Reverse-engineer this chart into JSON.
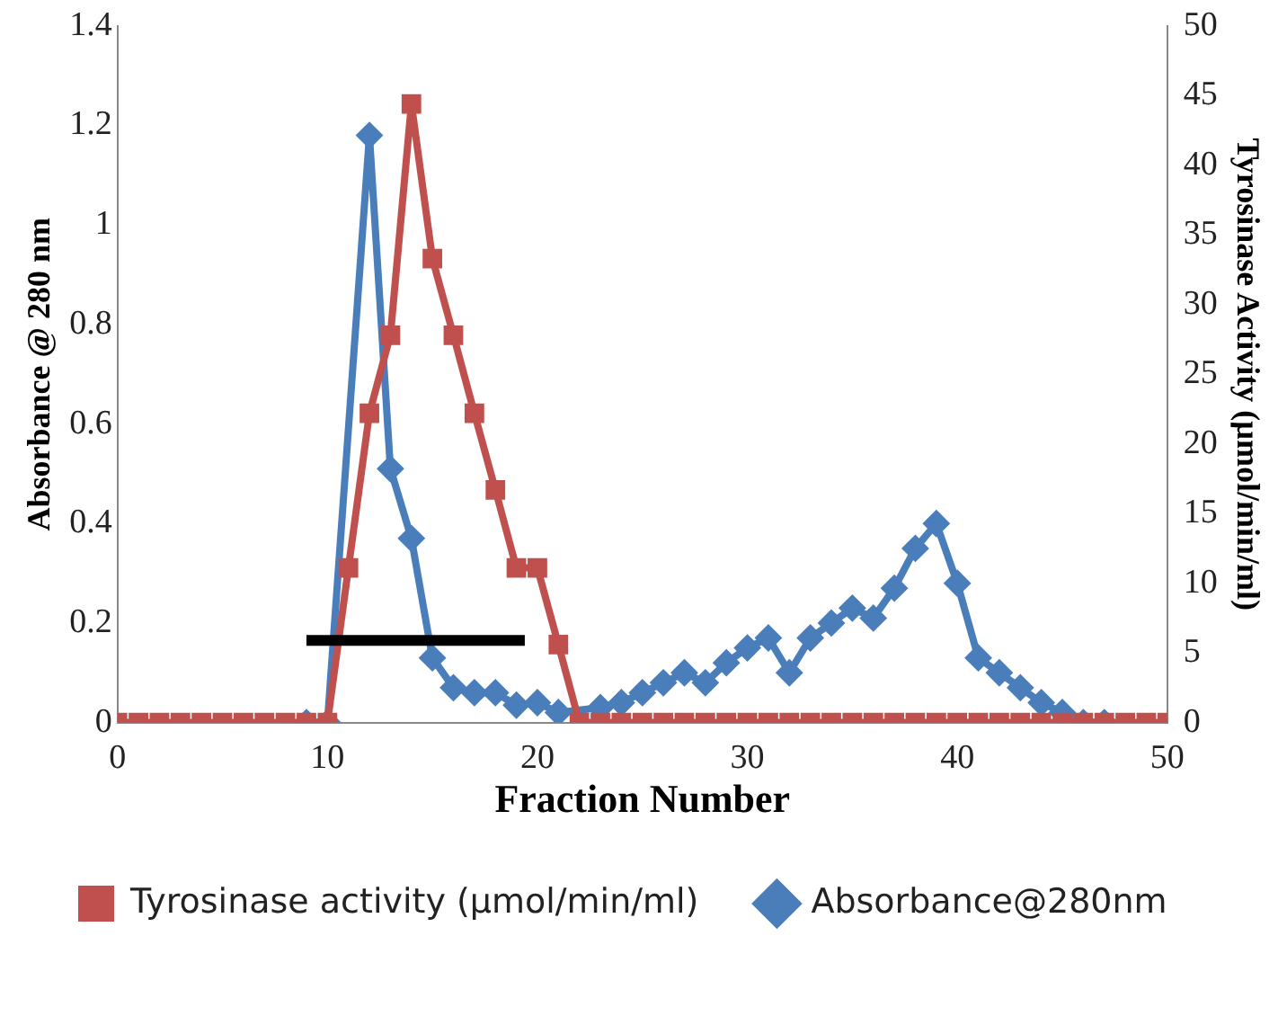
{
  "chart_data": {
    "type": "line",
    "xlabel": "Fraction Number",
    "ylabel": "Absorbance @ 280 nm",
    "y2label": "Tyrosinase Activity (µmol/min/ml)",
    "xlim": [
      0,
      50
    ],
    "xticks": [
      0,
      10,
      20,
      30,
      40,
      50
    ],
    "ylim": [
      0,
      1.4
    ],
    "yticks": [
      0,
      0.2,
      0.4,
      0.6,
      0.8,
      1,
      1.2,
      1.4
    ],
    "y2lim": [
      0,
      50
    ],
    "y2ticks": [
      0,
      5,
      10,
      15,
      20,
      25,
      30,
      35,
      40,
      45,
      50
    ],
    "x": [
      0,
      1,
      2,
      3,
      4,
      5,
      6,
      7,
      8,
      9,
      10,
      11,
      12,
      13,
      14,
      15,
      16,
      17,
      18,
      19,
      20,
      21,
      22,
      23,
      24,
      25,
      26,
      27,
      28,
      29,
      30,
      31,
      32,
      33,
      34,
      35,
      36,
      37,
      38,
      39,
      40,
      41,
      42,
      43,
      44,
      45,
      46,
      47,
      48,
      49,
      50
    ],
    "grid": false,
    "legend": "bottom",
    "series": [
      {
        "name": "Absorbance@280nm",
        "color": "#4a7ebb",
        "marker": "diamond",
        "values": [
          null,
          null,
          null,
          null,
          null,
          null,
          null,
          null,
          null,
          0,
          0,
          null,
          1.18,
          0.51,
          0.37,
          0.13,
          0.07,
          0.06,
          0.06,
          0.035,
          0.04,
          0.02,
          null,
          0.03,
          0.04,
          0.06,
          0.08,
          0.1,
          0.08,
          0.12,
          0.15,
          0.17,
          0.1,
          0.17,
          0.2,
          0.23,
          0.21,
          0.27,
          0.35,
          0.4,
          0.28,
          0.13,
          0.1,
          0.07,
          0.04,
          0.02,
          0,
          0,
          null,
          null,
          null
        ]
      },
      {
        "name": "Tyrosinase activity (µmol/min/ml)",
        "color": "#c0504d",
        "marker": "square",
        "axis": "y2",
        "values": [
          0,
          0,
          0,
          0,
          0,
          0,
          0,
          0,
          0,
          0,
          0,
          11.1,
          22.2,
          27.8,
          44.4,
          33.3,
          27.8,
          22.2,
          16.7,
          11.1,
          11.1,
          5.6,
          0,
          0,
          0,
          0,
          0,
          0,
          0,
          0,
          0,
          0,
          0,
          0,
          0,
          0,
          0,
          0,
          0,
          0,
          0,
          0,
          0,
          0,
          0,
          0,
          0,
          0,
          0,
          0,
          0
        ]
      },
      {
        "color": "#000000",
        "marker": "none",
        "x": [
          9,
          19.4
        ],
        "values": [
          0.165,
          0.165
        ]
      }
    ]
  }
}
